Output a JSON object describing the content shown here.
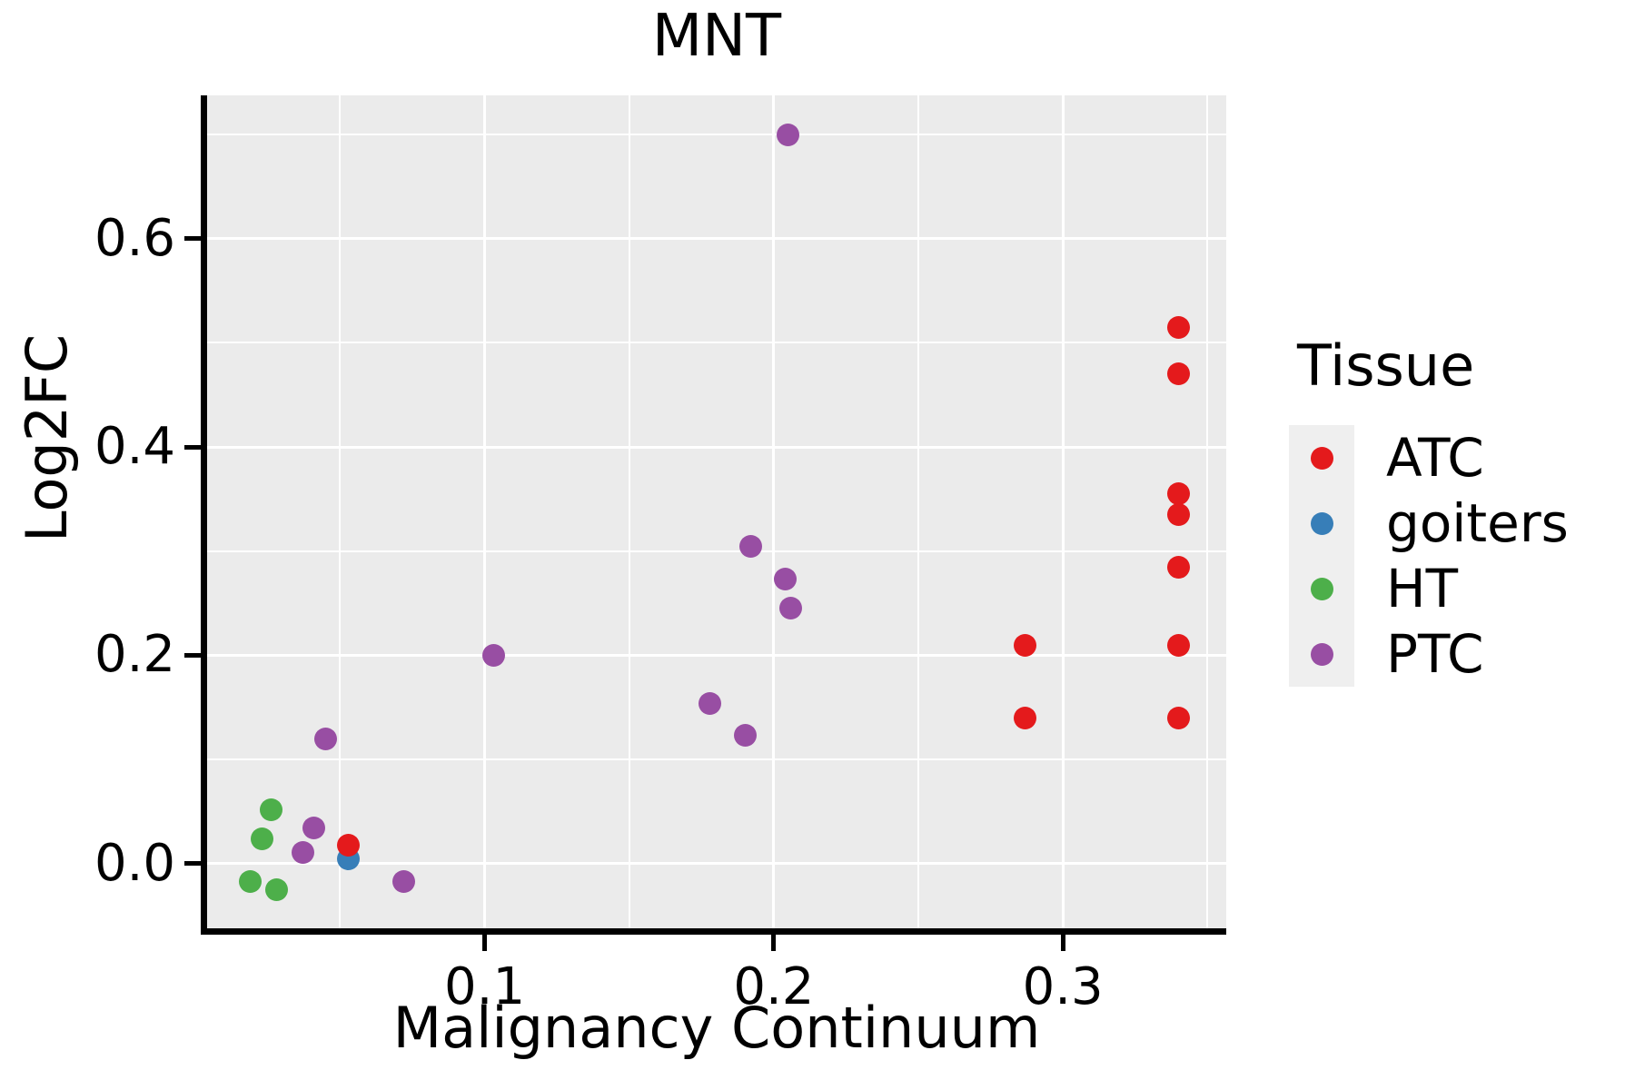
{
  "chart_data": {
    "type": "scatter",
    "title": "MNT",
    "xlabel": "Malignancy Continuum",
    "ylabel": "Log2FC",
    "legend_title": "Tissue",
    "legend_position": "right",
    "grid": true,
    "xlim": [
      0.004,
      0.3565
    ],
    "ylim": [
      -0.062,
      0.7375
    ],
    "x_major_ticks": [
      0.1,
      0.2,
      0.3
    ],
    "x_tick_labels": [
      "0.1",
      "0.2",
      "0.3"
    ],
    "x_minor_ticks": [
      0.05,
      0.15,
      0.25,
      0.35
    ],
    "y_major_ticks": [
      0.0,
      0.2,
      0.4,
      0.6
    ],
    "y_tick_labels": [
      "0.0",
      "0.2",
      "0.4",
      "0.6"
    ],
    "y_minor_ticks": [
      0.1,
      0.3,
      0.5,
      0.7
    ],
    "series": [
      {
        "name": "ATC",
        "color": "#E41A1C",
        "points": [
          [
            0.34,
            0.515
          ],
          [
            0.34,
            0.47
          ],
          [
            0.34,
            0.355
          ],
          [
            0.34,
            0.335
          ],
          [
            0.34,
            0.285
          ],
          [
            0.34,
            0.21
          ],
          [
            0.34,
            0.14
          ],
          [
            0.287,
            0.21
          ],
          [
            0.287,
            0.14
          ],
          [
            0.053,
            0.018
          ]
        ]
      },
      {
        "name": "goiters",
        "color": "#377EB8",
        "points": [
          [
            0.053,
            0.005
          ]
        ]
      },
      {
        "name": "HT",
        "color": "#4DAF4A",
        "points": [
          [
            0.026,
            0.052
          ],
          [
            0.023,
            0.024
          ],
          [
            0.019,
            -0.017
          ],
          [
            0.028,
            -0.025
          ]
        ]
      },
      {
        "name": "PTC",
        "color": "#984EA3",
        "points": [
          [
            0.205,
            0.7
          ],
          [
            0.192,
            0.305
          ],
          [
            0.204,
            0.273
          ],
          [
            0.206,
            0.245
          ],
          [
            0.178,
            0.154
          ],
          [
            0.19,
            0.123
          ],
          [
            0.103,
            0.2
          ],
          [
            0.045,
            0.12
          ],
          [
            0.041,
            0.034
          ],
          [
            0.037,
            0.011
          ],
          [
            0.072,
            -0.017
          ]
        ]
      }
    ],
    "colors": {
      "panel_background": "#EBEBEB",
      "gridline": "#FFFFFF",
      "axis_line": "#000000",
      "text": "#000000",
      "legend_key_background": "#EFEFEF"
    }
  }
}
